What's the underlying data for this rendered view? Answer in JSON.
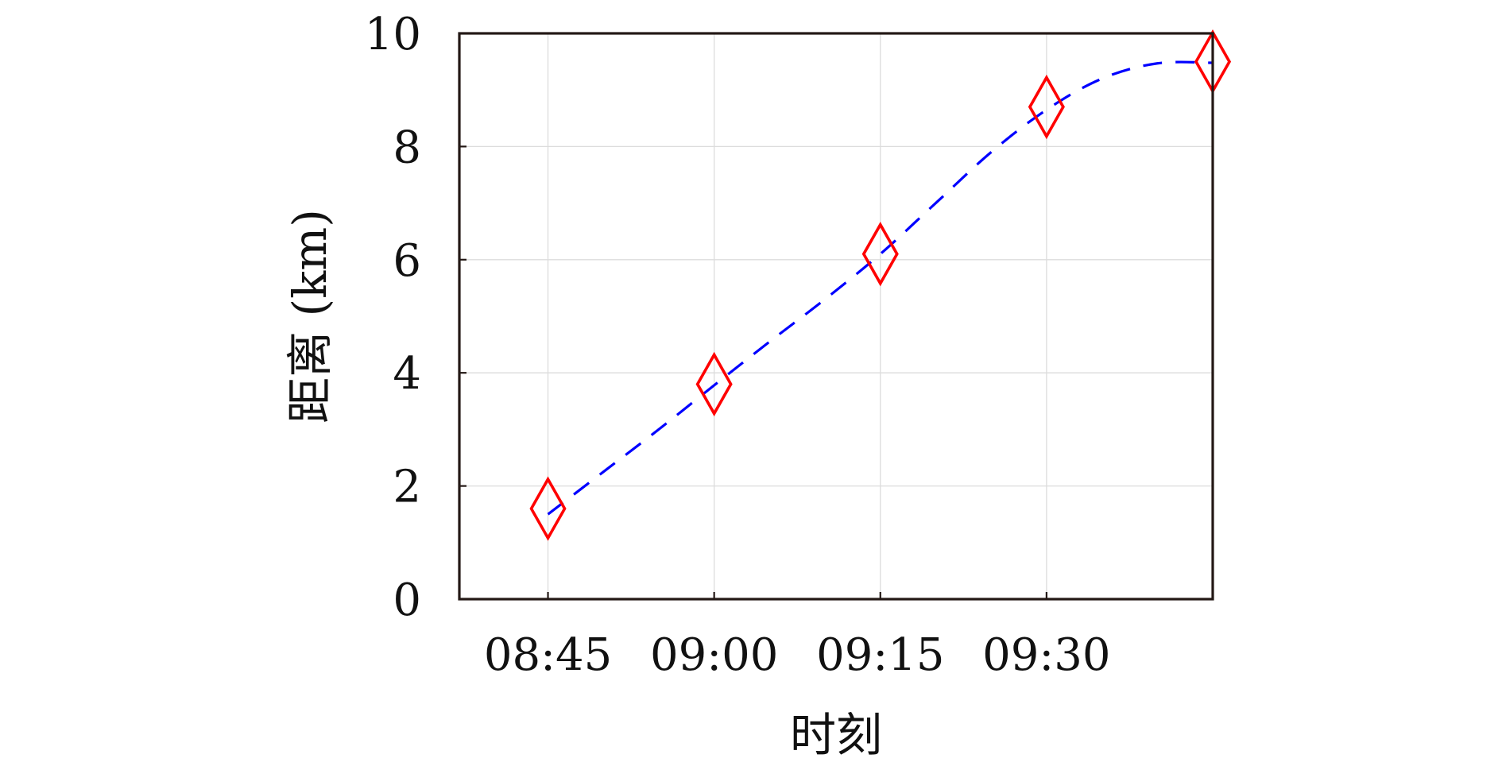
{
  "chart_data": {
    "type": "line",
    "title": "",
    "xlabel": "时刻",
    "ylabel": "距离 (km)",
    "x_tick_labels": [
      "08:45",
      "09:00",
      "09:15",
      "09:30"
    ],
    "x_tick_values": [
      "08:45",
      "09:00",
      "09:15",
      "09:30"
    ],
    "xlim": [
      "08:37",
      "09:45"
    ],
    "y_tick_labels": [
      "0",
      "2",
      "4",
      "6",
      "8",
      "10"
    ],
    "y_tick_values": [
      0,
      2,
      4,
      6,
      8,
      10
    ],
    "ylim": [
      0,
      10
    ],
    "grid": true,
    "legend": "none",
    "series": [
      {
        "kind": "markers",
        "marker": "diamond",
        "color": "#ff0000",
        "x": [
          "08:45",
          "09:00",
          "09:15",
          "09:30",
          "09:45"
        ],
        "y": [
          1.6,
          3.8,
          6.1,
          8.7,
          9.5
        ]
      },
      {
        "kind": "fit-curve",
        "style": "dashed",
        "color": "#0000ff",
        "x": [
          "08:45",
          "08:50",
          "08:55",
          "09:00",
          "09:05",
          "09:10",
          "09:15",
          "09:20",
          "09:25",
          "09:30",
          "09:35",
          "09:40",
          "09:45"
        ],
        "y": [
          1.5,
          2.25,
          3.0,
          3.78,
          4.55,
          5.3,
          6.1,
          7.0,
          7.9,
          8.65,
          9.2,
          9.47,
          9.48
        ]
      }
    ]
  }
}
